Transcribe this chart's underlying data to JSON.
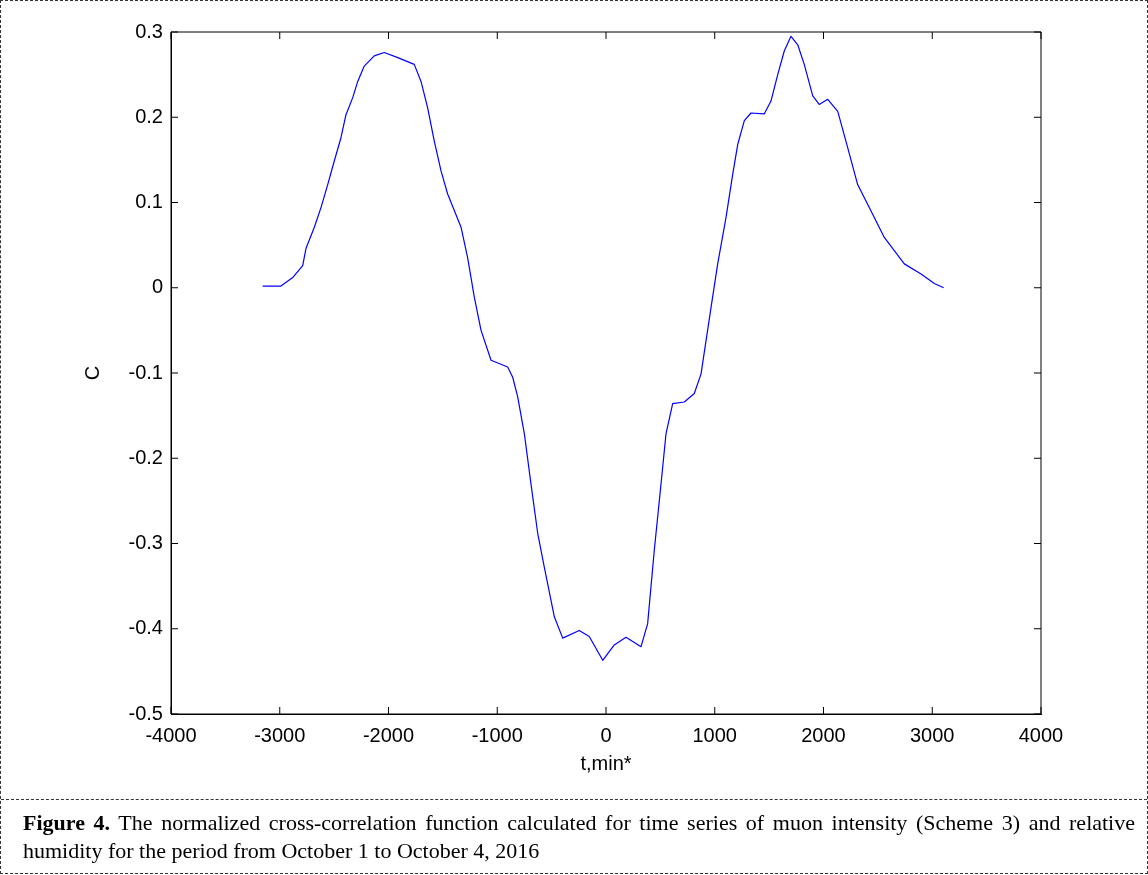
{
  "chart_data": {
    "type": "line",
    "xlabel": "t,min*",
    "ylabel": "C",
    "xlim": [
      -4000,
      4000
    ],
    "xticks": [
      -4000,
      -3000,
      -2000,
      -1000,
      0,
      1000,
      2000,
      3000,
      4000
    ],
    "ylim": [
      -0.5,
      0.3
    ],
    "yticks": [
      -0.5,
      -0.4,
      -0.3,
      -0.2,
      -0.1,
      0,
      0.1,
      0.2,
      0.3
    ],
    "grid": false,
    "legend": false,
    "marker": "none",
    "line_style": "solid",
    "annotations": [
      "Figure 4.",
      "The normalized cross-correlation function calculated for time series of muon intensity (Scheme 3) and relative humidity for the period from October 1 to October 4, 2016"
    ],
    "series": [
      {
        "color": "#0000ff",
        "x": [
          -3157,
          -2989,
          -2881,
          -2789,
          -2759,
          -2682,
          -2621,
          -2559,
          -2498,
          -2437,
          -2391,
          -2329,
          -2283,
          -2223,
          -2131,
          -2039,
          -1915,
          -1763,
          -1701,
          -1640,
          -1579,
          -1517,
          -1456,
          -1333,
          -1272,
          -1211,
          -1149,
          -1057,
          -904,
          -858,
          -812,
          -751,
          -690,
          -628,
          -567,
          -475,
          -398,
          -246,
          -154,
          -30,
          76,
          184,
          322,
          383,
          444,
          506,
          552,
          613,
          720,
          812,
          874,
          966,
          1027,
          1103,
          1165,
          1211,
          1272,
          1333,
          1456,
          1517,
          1579,
          1640,
          1701,
          1763,
          1823,
          1901,
          1961,
          2039,
          2131,
          2223,
          2314,
          2437,
          2559,
          2743,
          2897,
          3019,
          3105
        ],
        "values": [
          0.002,
          0.002,
          0.012,
          0.026,
          0.046,
          0.071,
          0.094,
          0.121,
          0.149,
          0.176,
          0.203,
          0.223,
          0.242,
          0.26,
          0.272,
          0.276,
          0.27,
          0.262,
          0.242,
          0.211,
          0.172,
          0.137,
          0.11,
          0.071,
          0.035,
          -0.011,
          -0.05,
          -0.085,
          -0.093,
          -0.105,
          -0.128,
          -0.171,
          -0.23,
          -0.288,
          -0.328,
          -0.386,
          -0.411,
          -0.402,
          -0.409,
          -0.437,
          -0.419,
          -0.41,
          -0.421,
          -0.394,
          -0.308,
          -0.23,
          -0.171,
          -0.136,
          -0.134,
          -0.124,
          -0.101,
          -0.023,
          0.028,
          0.082,
          0.133,
          0.168,
          0.196,
          0.205,
          0.204,
          0.219,
          0.25,
          0.278,
          0.295,
          0.285,
          0.262,
          0.225,
          0.215,
          0.221,
          0.207,
          0.164,
          0.121,
          0.09,
          0.059,
          0.028,
          0.016,
          0.005,
          0
        ]
      }
    ]
  }
}
